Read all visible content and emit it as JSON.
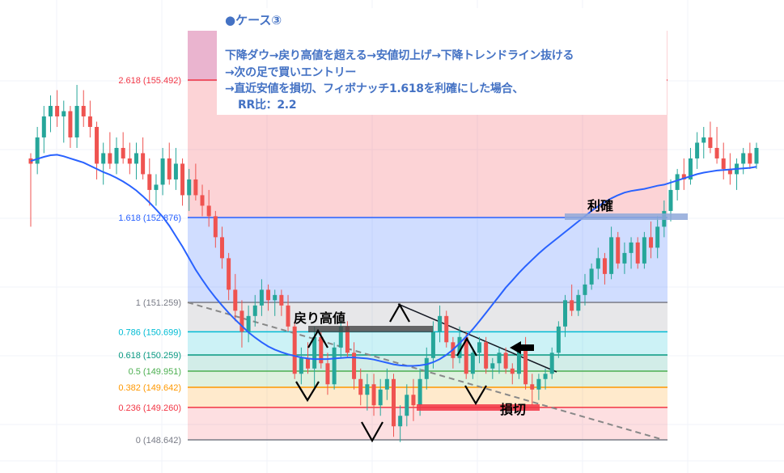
{
  "note": {
    "title": "●ケース③",
    "lines": [
      "下降ダウ→戻り高値を超える→安値切上げ→下降トレンドライン抜ける",
      "→次の足で買いエントリー",
      "→直近安値を損切、フィボナッチ1.618を利確にした場合、",
      "RR比：2.2"
    ]
  },
  "annotations": {
    "modori_takane": "戻り高値",
    "rikaku": "利確",
    "songiri": "損切"
  },
  "colors": {
    "up": "#26a69a",
    "down": "#ef5350",
    "ma": "#2962ff",
    "note_text": "#4472c4"
  },
  "chart_data": {
    "type": "candlestick",
    "title": "",
    "fib_levels": [
      {
        "ratio": "2.618",
        "price": 155.492,
        "label": "2.618 (155.492)",
        "color": "#f23645"
      },
      {
        "ratio": "1.618",
        "price": 152.876,
        "label": "1.618 (152.876)",
        "color": "#2962ff"
      },
      {
        "ratio": "1",
        "price": 151.259,
        "label": "1 (151.259)",
        "color": "#787b86"
      },
      {
        "ratio": "0.786",
        "price": 150.699,
        "label": "0.786 (150.699)",
        "color": "#00bcd4"
      },
      {
        "ratio": "0.618",
        "price": 150.259,
        "label": "0.618 (150.259)",
        "color": "#089981"
      },
      {
        "ratio": "0.5",
        "price": 149.951,
        "label": "0.5 (149.951)",
        "color": "#4caf50"
      },
      {
        "ratio": "0.382",
        "price": 149.642,
        "label": "0.382 (149.642)",
        "color": "#ff9800"
      },
      {
        "ratio": "0.236",
        "price": 149.26,
        "label": "0.236 (149.260)",
        "color": "#f23645"
      },
      {
        "ratio": "0",
        "price": 148.642,
        "label": "0 (148.642)",
        "color": "#787b86"
      }
    ],
    "candles": [
      [
        154.0,
        154.1,
        152.7,
        153.9
      ],
      [
        153.9,
        154.6,
        153.7,
        154.4
      ],
      [
        154.4,
        155.0,
        154.1,
        154.8
      ],
      [
        154.8,
        155.2,
        154.5,
        155.0
      ],
      [
        155.0,
        155.3,
        154.6,
        154.8
      ],
      [
        154.8,
        155.1,
        154.3,
        154.9
      ],
      [
        154.9,
        155.0,
        154.2,
        154.4
      ],
      [
        154.4,
        155.4,
        154.2,
        155.0
      ],
      [
        155.0,
        155.3,
        154.6,
        154.8
      ],
      [
        154.8,
        155.1,
        154.4,
        154.6
      ],
      [
        154.6,
        154.7,
        153.6,
        153.9
      ],
      [
        153.9,
        154.3,
        153.5,
        154.1
      ],
      [
        154.1,
        154.5,
        153.8,
        153.9
      ],
      [
        153.9,
        154.4,
        153.7,
        154.2
      ],
      [
        154.2,
        154.5,
        153.9,
        154.0
      ],
      [
        154.0,
        154.3,
        153.7,
        153.9
      ],
      [
        153.9,
        154.3,
        153.6,
        154.1
      ],
      [
        154.1,
        154.4,
        153.6,
        153.7
      ],
      [
        153.7,
        154.0,
        153.1,
        153.4
      ],
      [
        153.4,
        153.7,
        153.1,
        153.5
      ],
      [
        153.5,
        154.2,
        153.3,
        154.0
      ],
      [
        154.0,
        154.3,
        153.5,
        153.6
      ],
      [
        153.6,
        154.2,
        153.4,
        153.9
      ],
      [
        153.9,
        154.0,
        153.1,
        153.3
      ],
      [
        153.3,
        153.8,
        153.0,
        153.6
      ],
      [
        153.6,
        153.9,
        153.2,
        153.3
      ],
      [
        153.3,
        153.5,
        152.9,
        153.1
      ],
      [
        153.1,
        153.4,
        152.7,
        152.9
      ],
      [
        152.9,
        153.0,
        152.3,
        152.5
      ],
      [
        152.5,
        152.7,
        151.9,
        152.1
      ],
      [
        152.1,
        152.2,
        151.3,
        151.5
      ],
      [
        151.5,
        151.8,
        150.9,
        151.1
      ],
      [
        151.1,
        151.3,
        150.4,
        150.7
      ],
      [
        150.7,
        151.2,
        150.5,
        151.0
      ],
      [
        151.0,
        151.4,
        150.8,
        151.2
      ],
      [
        151.2,
        151.7,
        151.0,
        151.5
      ],
      [
        151.5,
        151.6,
        151.1,
        151.3
      ],
      [
        151.3,
        151.5,
        151.0,
        151.4
      ],
      [
        151.4,
        151.5,
        151.0,
        151.2
      ],
      [
        151.2,
        151.4,
        150.7,
        150.8
      ],
      [
        150.8,
        150.9,
        149.8,
        149.9
      ],
      [
        149.9,
        150.4,
        149.7,
        150.2
      ],
      [
        150.2,
        150.5,
        149.9,
        150.0
      ],
      [
        150.0,
        150.8,
        149.6,
        150.6
      ],
      [
        150.6,
        150.7,
        150.0,
        150.1
      ],
      [
        150.1,
        150.3,
        149.5,
        149.7
      ],
      [
        149.7,
        150.5,
        149.6,
        150.4
      ],
      [
        150.4,
        150.9,
        150.2,
        150.8
      ],
      [
        150.8,
        150.9,
        150.2,
        150.3
      ],
      [
        150.3,
        150.5,
        149.6,
        149.8
      ],
      [
        149.8,
        150.0,
        149.3,
        149.5
      ],
      [
        149.5,
        149.9,
        149.2,
        149.7
      ],
      [
        149.7,
        149.9,
        149.1,
        149.3
      ],
      [
        149.3,
        149.8,
        149.1,
        149.6
      ],
      [
        149.6,
        150.0,
        149.4,
        149.8
      ],
      [
        149.8,
        149.9,
        148.7,
        148.9
      ],
      [
        148.9,
        149.3,
        148.6,
        149.1
      ],
      [
        149.1,
        149.7,
        148.9,
        149.5
      ],
      [
        149.5,
        149.8,
        149.0,
        149.3
      ],
      [
        149.3,
        150.0,
        149.1,
        149.8
      ],
      [
        149.8,
        150.4,
        149.6,
        150.2
      ],
      [
        150.2,
        150.9,
        150.0,
        150.7
      ],
      [
        150.7,
        151.2,
        150.5,
        151.0
      ],
      [
        151.0,
        151.1,
        150.4,
        150.5
      ],
      [
        150.5,
        150.6,
        150.0,
        150.2
      ],
      [
        150.2,
        150.8,
        150.1,
        150.6
      ],
      [
        150.6,
        150.7,
        149.8,
        149.9
      ],
      [
        149.9,
        150.4,
        149.8,
        150.3
      ],
      [
        150.3,
        150.6,
        150.1,
        150.5
      ],
      [
        150.5,
        150.6,
        149.9,
        150.0
      ],
      [
        150.0,
        150.2,
        149.8,
        150.1
      ],
      [
        150.1,
        150.4,
        149.9,
        150.3
      ],
      [
        150.3,
        150.4,
        149.9,
        150.0
      ],
      [
        150.0,
        150.1,
        149.7,
        149.9
      ],
      [
        149.9,
        150.5,
        149.8,
        150.4
      ],
      [
        150.4,
        150.6,
        149.6,
        149.7
      ],
      [
        149.7,
        149.9,
        149.3,
        149.6
      ],
      [
        149.6,
        149.9,
        149.4,
        149.8
      ],
      [
        149.8,
        150.0,
        149.6,
        149.9
      ],
      [
        149.9,
        150.4,
        149.8,
        150.3
      ],
      [
        150.3,
        150.9,
        150.2,
        150.8
      ],
      [
        150.8,
        151.4,
        150.6,
        151.3
      ],
      [
        151.3,
        151.6,
        151.0,
        151.1
      ],
      [
        151.1,
        151.5,
        151.0,
        151.4
      ],
      [
        151.4,
        151.8,
        151.2,
        151.6
      ],
      [
        151.6,
        152.0,
        151.5,
        151.9
      ],
      [
        151.9,
        152.3,
        151.7,
        152.1
      ],
      [
        152.1,
        152.2,
        151.6,
        151.8
      ],
      [
        151.8,
        152.7,
        151.7,
        152.5
      ],
      [
        152.5,
        152.6,
        151.9,
        152.0
      ],
      [
        152.0,
        152.4,
        151.8,
        152.2
      ],
      [
        152.2,
        152.5,
        151.9,
        152.4
      ],
      [
        152.4,
        152.5,
        151.9,
        152.0
      ],
      [
        152.0,
        152.6,
        151.9,
        152.5
      ],
      [
        152.5,
        152.8,
        152.1,
        152.3
      ],
      [
        152.3,
        152.9,
        152.1,
        152.7
      ],
      [
        152.7,
        153.2,
        152.5,
        153.0
      ],
      [
        153.0,
        153.6,
        152.8,
        153.4
      ],
      [
        153.4,
        153.8,
        153.2,
        153.7
      ],
      [
        153.7,
        154.0,
        153.4,
        153.6
      ],
      [
        153.6,
        154.2,
        153.5,
        154.0
      ],
      [
        154.0,
        154.5,
        153.8,
        154.3
      ],
      [
        154.3,
        154.6,
        154.0,
        154.4
      ],
      [
        154.4,
        154.7,
        154.1,
        154.2
      ],
      [
        154.2,
        154.6,
        153.9,
        154.0
      ],
      [
        154.0,
        154.3,
        153.6,
        153.8
      ],
      [
        153.8,
        154.1,
        153.5,
        153.7
      ],
      [
        153.7,
        154.0,
        153.4,
        153.9
      ],
      [
        153.9,
        154.2,
        153.7,
        154.1
      ],
      [
        154.1,
        154.3,
        153.8,
        153.9
      ],
      [
        153.9,
        154.3,
        153.8,
        154.2
      ]
    ],
    "ma_series_name": "",
    "ma": [
      153.95,
      153.99,
      154.03,
      154.06,
      154.07,
      154.04,
      154.0,
      153.96,
      153.92,
      153.86,
      153.8,
      153.74,
      153.69,
      153.63,
      153.56,
      153.48,
      153.39,
      153.28,
      153.16,
      153.03,
      152.89,
      152.72,
      152.52,
      152.32,
      152.1,
      151.88,
      151.69,
      151.51,
      151.35,
      151.2,
      151.06,
      150.93,
      150.81,
      150.69,
      150.59,
      150.5,
      150.42,
      150.36,
      150.31,
      150.27,
      150.24,
      150.21,
      150.19,
      150.18,
      150.18,
      150.18,
      150.19,
      150.2,
      150.21,
      150.21,
      150.2,
      150.19,
      150.17,
      150.14,
      150.11,
      150.08,
      150.06,
      150.05,
      150.05,
      150.06,
      150.08,
      150.12,
      150.18,
      150.26,
      150.36,
      150.48,
      150.61,
      150.75,
      150.9,
      151.06,
      151.22,
      151.38,
      151.54,
      151.68,
      151.82,
      151.95,
      152.07,
      152.19,
      152.3,
      152.4,
      152.5,
      152.6,
      152.7,
      152.8,
      152.9,
      153.0,
      153.09,
      153.17,
      153.24,
      153.3,
      153.35,
      153.38,
      153.4,
      153.42,
      153.45,
      153.48,
      153.5,
      153.54,
      153.58,
      153.62,
      153.66,
      153.7,
      153.73,
      153.75,
      153.77,
      153.78,
      153.79,
      153.8,
      153.81,
      153.82,
      153.84
    ]
  }
}
